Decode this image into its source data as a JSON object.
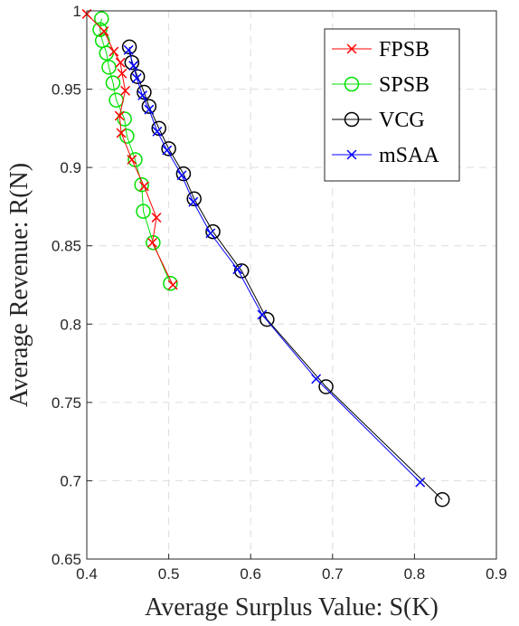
{
  "chart_data": {
    "type": "line",
    "xlabel": "Average Surplus Value: S(K)",
    "ylabel": "Average Revenue: R(N)",
    "xlim": [
      0.4,
      0.9
    ],
    "ylim": [
      0.65,
      1.0
    ],
    "xticks": [
      "0.4",
      "0.5",
      "0.6",
      "0.7",
      "0.8",
      "0.9"
    ],
    "yticks": [
      "0.65",
      "0.7",
      "0.75",
      "0.8",
      "0.85",
      "0.9",
      "0.95",
      "1"
    ],
    "grid": true,
    "legend_position": "top-right",
    "series": [
      {
        "name": "FPSB",
        "color": "#ff0000",
        "marker": "x",
        "points": [
          [
            0.4,
            0.998
          ],
          [
            0.421,
            0.987
          ],
          [
            0.433,
            0.974
          ],
          [
            0.441,
            0.967
          ],
          [
            0.443,
            0.96
          ],
          [
            0.447,
            0.949
          ],
          [
            0.44,
            0.933
          ],
          [
            0.442,
            0.922
          ],
          [
            0.455,
            0.905
          ],
          [
            0.47,
            0.888
          ],
          [
            0.485,
            0.868
          ],
          [
            0.48,
            0.852
          ],
          [
            0.505,
            0.825
          ]
        ]
      },
      {
        "name": "SPSB",
        "color": "#00e000",
        "marker": "o",
        "points": [
          [
            0.418,
            0.995
          ],
          [
            0.416,
            0.988
          ],
          [
            0.419,
            0.981
          ],
          [
            0.424,
            0.973
          ],
          [
            0.427,
            0.964
          ],
          [
            0.432,
            0.954
          ],
          [
            0.436,
            0.943
          ],
          [
            0.446,
            0.931
          ],
          [
            0.449,
            0.92
          ],
          [
            0.459,
            0.905
          ],
          [
            0.467,
            0.889
          ],
          [
            0.469,
            0.872
          ],
          [
            0.481,
            0.852
          ],
          [
            0.502,
            0.826
          ]
        ]
      },
      {
        "name": "VCG",
        "color": "#000000",
        "marker": "o",
        "points": [
          [
            0.452,
            0.977
          ],
          [
            0.455,
            0.967
          ],
          [
            0.462,
            0.958
          ],
          [
            0.47,
            0.948
          ],
          [
            0.476,
            0.939
          ],
          [
            0.488,
            0.925
          ],
          [
            0.5,
            0.912
          ],
          [
            0.518,
            0.896
          ],
          [
            0.531,
            0.88
          ],
          [
            0.554,
            0.859
          ],
          [
            0.589,
            0.834
          ],
          [
            0.62,
            0.803
          ],
          [
            0.692,
            0.76
          ],
          [
            0.834,
            0.688
          ]
        ]
      },
      {
        "name": "mSAA",
        "color": "#0000ff",
        "marker": "x",
        "points": [
          [
            0.451,
            0.975
          ],
          [
            0.457,
            0.965
          ],
          [
            0.461,
            0.957
          ],
          [
            0.468,
            0.946
          ],
          [
            0.476,
            0.937
          ],
          [
            0.486,
            0.923
          ],
          [
            0.498,
            0.911
          ],
          [
            0.516,
            0.895
          ],
          [
            0.53,
            0.878
          ],
          [
            0.551,
            0.858
          ],
          [
            0.584,
            0.835
          ],
          [
            0.614,
            0.806
          ],
          [
            0.68,
            0.765
          ],
          [
            0.807,
            0.699
          ]
        ]
      }
    ]
  }
}
